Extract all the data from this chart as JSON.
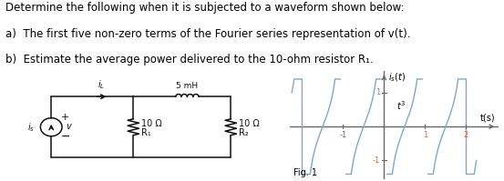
{
  "text_lines": [
    "Determine the following when it is subjected to a waveform shown below:",
    "a)  The first five non-zero terms of the Fourier series representation of v(t).",
    "b)  Estimate the average power delivered to the 10-ohm resistor R₁."
  ],
  "circuit": {
    "inductor_label": "5 mH",
    "R1_label": "10 Ω",
    "R2_label": "10 Ω",
    "R1_sub": "R₁",
    "R2_sub": "R₂"
  },
  "waveform": {
    "is_label": "$i_s(t)$",
    "t_label": "t(s)",
    "fig_label": "Fig. 1",
    "t3_label": "$t^3$",
    "color": "#7aaac8",
    "axis_color": "#666666",
    "tick_color": "#cc6644"
  },
  "bg_color": "#ffffff",
  "text_color": "#000000",
  "font_size": 8.5
}
